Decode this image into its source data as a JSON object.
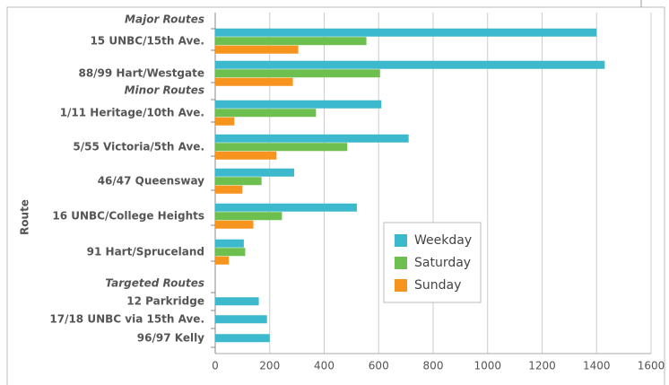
{
  "chart_data": {
    "type": "bar",
    "orientation": "horizontal",
    "y_axis_label": "Route",
    "categories": [
      "Major Routes",
      "15 UNBC/15th Ave.",
      "88/99 Hart/Westgate",
      "Minor Routes",
      "1/11 Heritage/10th Ave.",
      "5/55 Victoria/5th Ave.",
      "46/47 Queensway",
      "16 UNBC/College Heights",
      "91 Hart/Spruceland",
      "Targeted Routes",
      "12 Parkridge",
      "17/18 UNBC via 15th Ave.",
      "96/97 Kelly"
    ],
    "series": [
      {
        "name": "Weekday",
        "color": "#3db9cd",
        "values": [
          null,
          1400,
          1430,
          null,
          610,
          710,
          290,
          520,
          105,
          null,
          160,
          190,
          200
        ]
      },
      {
        "name": "Saturday",
        "color": "#6dbf4f",
        "values": [
          null,
          555,
          605,
          null,
          370,
          485,
          170,
          245,
          110,
          null,
          null,
          null,
          null
        ]
      },
      {
        "name": "Sunday",
        "color": "#f7941d",
        "values": [
          null,
          305,
          285,
          null,
          70,
          225,
          100,
          140,
          50,
          null,
          null,
          null,
          null
        ]
      }
    ],
    "xlim": [
      0,
      1600
    ],
    "xticks": [
      0,
      200,
      400,
      600,
      800,
      1000,
      1200,
      1400,
      1600
    ],
    "grid": true,
    "legend": "lower-right"
  }
}
